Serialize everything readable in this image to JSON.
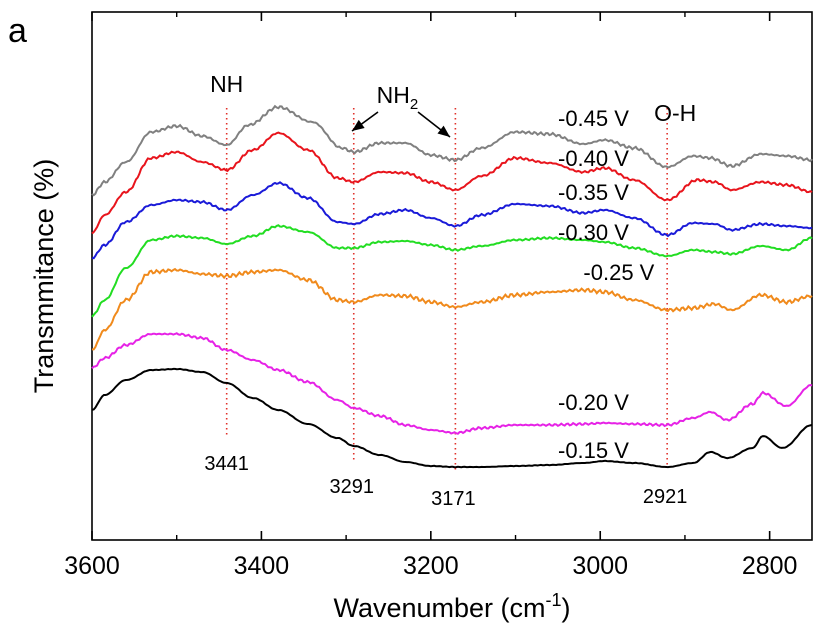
{
  "panel_letter": "a",
  "chart_data": {
    "type": "line",
    "title": "",
    "xlabel": "Wavenumber (cm",
    "xlabel_sup": "-1",
    "xlabel_end": ")",
    "ylabel": "Transmmitance (%)",
    "xlim": [
      3600,
      2750
    ],
    "x_reversed": true,
    "x_ticks": [
      3600,
      3400,
      3200,
      3000,
      2800
    ],
    "y_ticks_shown": false,
    "grid": false,
    "group_labels": [
      {
        "text": "NH",
        "x": 3441
      },
      {
        "text": "NH",
        "sub": "2",
        "x": 3230
      },
      {
        "text": "O-H",
        "x": 2921
      }
    ],
    "peak_lines": [
      {
        "x": 3441,
        "label": "3441"
      },
      {
        "x": 3291,
        "label": "3291"
      },
      {
        "x": 3171,
        "label": "3171"
      },
      {
        "x": 2921,
        "label": "2921"
      }
    ],
    "peak_line_color": "#e0302a",
    "series": [
      {
        "name": "-0.45 V",
        "color": "#808080"
      },
      {
        "name": "-0.40 V",
        "color": "#e8141c"
      },
      {
        "name": "-0.35 V",
        "color": "#1a1ad8"
      },
      {
        "name": "-0.30 V",
        "color": "#22dd22"
      },
      {
        "name": "-0.25 V",
        "color": "#f08a1c"
      },
      {
        "name": "-0.20 V",
        "color": "#e622e6"
      },
      {
        "name": "-0.15 V",
        "color": "#000000"
      }
    ]
  }
}
